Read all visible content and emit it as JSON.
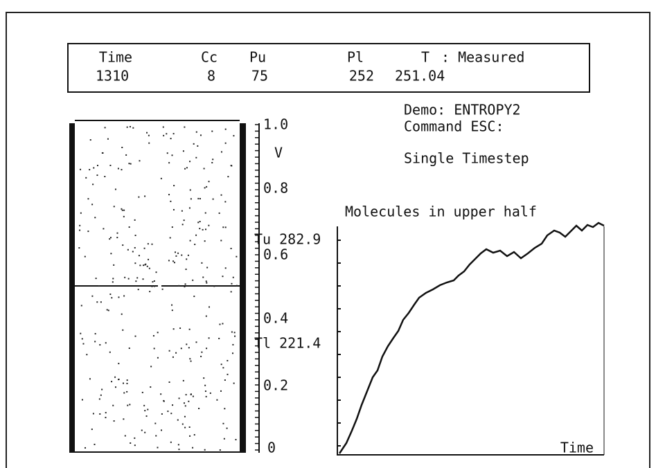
{
  "header": {
    "columns": [
      {
        "label": "Time",
        "value": "1310"
      },
      {
        "label": "Cc",
        "value": "8"
      },
      {
        "label": "Pu",
        "value": "75"
      },
      {
        "label": "Pl",
        "value": "252"
      },
      {
        "label": "T",
        "value": "251.04"
      }
    ],
    "mode": ": Measured"
  },
  "status": {
    "demo": "Demo: ENTROPY2",
    "command": "Command ESC:",
    "step": "Single Timestep"
  },
  "scale": {
    "top": "1.0",
    "axis": "V",
    "s08": "0.8",
    "tu": "Tu 282.9",
    "s06": "0.6",
    "s04": "0.4",
    "tl": "Tl 221.4",
    "s02": "0.2",
    "bottom": "0"
  },
  "plot": {
    "title": "Molecules in upper half",
    "xlabel": "Time"
  }
}
